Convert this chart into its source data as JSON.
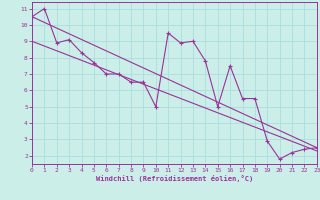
{
  "title": "",
  "xlabel": "Windchill (Refroidissement éolien,°C)",
  "background_color": "#cceee8",
  "grid_color": "#aadddd",
  "line_color": "#993399",
  "xlim": [
    0,
    23
  ],
  "ylim": [
    1.5,
    11.4
  ],
  "xticks": [
    0,
    1,
    2,
    3,
    4,
    5,
    6,
    7,
    8,
    9,
    10,
    11,
    12,
    13,
    14,
    15,
    16,
    17,
    18,
    19,
    20,
    21,
    22,
    23
  ],
  "yticks": [
    2,
    3,
    4,
    5,
    6,
    7,
    8,
    9,
    10,
    11
  ],
  "main_x": [
    0,
    1,
    2,
    3,
    4,
    5,
    6,
    7,
    8,
    9,
    10,
    11,
    12,
    13,
    14,
    15,
    16,
    17,
    18,
    19,
    20,
    21,
    22,
    23
  ],
  "main_y": [
    10.5,
    11.0,
    8.9,
    9.1,
    8.3,
    7.7,
    7.0,
    7.0,
    6.5,
    6.5,
    5.0,
    9.5,
    8.9,
    9.0,
    7.8,
    5.0,
    7.5,
    5.5,
    5.5,
    2.9,
    1.8,
    2.2,
    2.4,
    2.5
  ],
  "trend1_x": [
    0,
    23
  ],
  "trend1_y": [
    10.5,
    2.5
  ],
  "trend2_x": [
    0,
    23
  ],
  "trend2_y": [
    9.0,
    2.3
  ]
}
